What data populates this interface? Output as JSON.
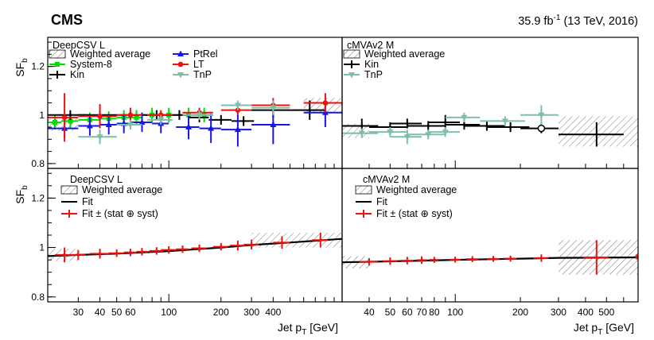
{
  "header": {
    "experiment": "CMS",
    "lumi_prefix": "35.9 fb",
    "lumi_exp": "-1",
    "lumi_suffix": " (13 TeV, 2016)"
  },
  "axes": {
    "ylabel_main": "SF",
    "ylabel_sub": "b",
    "xlabel_main": "Jet p",
    "xlabel_sub": "T",
    "xlabel_unit": " [GeV]"
  },
  "colors": {
    "black": "#000000",
    "green_sys8": "#00dd00",
    "red_lt": "#ee1111",
    "blue_ptrel": "#1515ee",
    "teal_tnp": "#7fbfa6",
    "hatch": "#888888"
  },
  "chart_data": [
    {
      "id": "top-left",
      "type": "scatter",
      "title": "DeepCSV L",
      "ylim": [
        0.78,
        1.32
      ],
      "xlim": [
        20,
        1000
      ],
      "xscale": "log",
      "yticks": [
        0.8,
        1.0,
        1.2
      ],
      "ytick_labels": [
        "0.8",
        "1",
        "1.2"
      ],
      "legend": [
        "Weighted average",
        "System-8",
        "Kin",
        "PtRel",
        "LT",
        "TnP"
      ],
      "hatch_bands": [
        {
          "x0": 20,
          "x1": 30,
          "ylo": 0.935,
          "yhi": 0.985
        },
        {
          "x0": 600,
          "x1": 1000,
          "ylo": 1.01,
          "yhi": 1.07
        }
      ],
      "series": [
        {
          "name": "System-8",
          "marker": "square",
          "color": "green_sys8",
          "points": [
            [
              22,
              0.97,
              2,
              0.03
            ],
            [
              27,
              0.975,
              3,
              0.03
            ],
            [
              35,
              0.98,
              5,
              0.03
            ],
            [
              45,
              0.985,
              5,
              0.03
            ],
            [
              55,
              0.99,
              5,
              0.03
            ],
            [
              65,
              0.99,
              5,
              0.03
            ],
            [
              80,
              1.0,
              10,
              0.03
            ],
            [
              100,
              1.0,
              10,
              0.03
            ],
            [
              130,
              1.0,
              20,
              0.03
            ],
            [
              160,
              1.0,
              20,
              0.03
            ]
          ]
        },
        {
          "name": "Kin",
          "marker": "cross",
          "color": "black",
          "points": [
            [
              27,
              1.0,
              7,
              0.02
            ],
            [
              40,
              1.0,
              10,
              0.02
            ],
            [
              60,
              1.0,
              10,
              0.02
            ],
            [
              85,
              1.0,
              15,
              0.02
            ],
            [
              115,
              1.0,
              15,
              0.02
            ],
            [
              150,
              0.99,
              20,
              0.02
            ],
            [
              200,
              0.98,
              30,
              0.02
            ],
            [
              270,
              0.975,
              40,
              0.02
            ],
            [
              400,
              1.02,
              100,
              0.03
            ],
            [
              650,
              1.02,
              150,
              0.04
            ]
          ]
        },
        {
          "name": "PtRel",
          "marker": "triangle-up",
          "color": "blue_ptrel",
          "points": [
            [
              25,
              0.945,
              5,
              0.04
            ],
            [
              35,
              0.955,
              5,
              0.04
            ],
            [
              45,
              0.96,
              5,
              0.04
            ],
            [
              55,
              0.965,
              5,
              0.04
            ],
            [
              70,
              0.97,
              10,
              0.04
            ],
            [
              90,
              0.965,
              10,
              0.04
            ],
            [
              130,
              0.95,
              20,
              0.05
            ],
            [
              175,
              0.945,
              25,
              0.06
            ],
            [
              250,
              0.94,
              50,
              0.07
            ],
            [
              400,
              0.96,
              100,
              0.08
            ],
            [
              800,
              1.01,
              200,
              0.06
            ]
          ]
        },
        {
          "name": "LT",
          "marker": "circle",
          "color": "red_lt",
          "points": [
            [
              25,
              0.99,
              5,
              0.1
            ],
            [
              40,
              0.995,
              10,
              0.05
            ],
            [
              60,
              1.0,
              10,
              0.03
            ],
            [
              90,
              1.0,
              15,
              0.02
            ],
            [
              150,
              1.01,
              30,
              0.02
            ],
            [
              250,
              1.02,
              50,
              0.02
            ],
            [
              400,
              1.04,
              100,
              0.03
            ],
            [
              800,
              1.05,
              200,
              0.04
            ]
          ]
        },
        {
          "name": "TnP",
          "marker": "triangle-down",
          "color": "teal_tnp",
          "points": [
            [
              40,
              0.91,
              10,
              0.03
            ],
            [
              60,
              0.96,
              10,
              0.02
            ],
            [
              90,
              0.98,
              15,
              0.02
            ],
            [
              150,
              1.0,
              30,
              0.02
            ],
            [
              250,
              1.04,
              50,
              0.02
            ],
            [
              400,
              1.03,
              100,
              0.03
            ]
          ]
        }
      ]
    },
    {
      "id": "top-right",
      "type": "scatter",
      "title": "cMVAv2 M",
      "ylim": [
        0.78,
        1.32
      ],
      "xlim": [
        30,
        700
      ],
      "xscale": "log",
      "legend": [
        "Weighted average",
        "Kin",
        "TnP"
      ],
      "hatch_bands": [
        {
          "x0": 30,
          "x1": 40,
          "ylo": 0.905,
          "yhi": 0.965
        },
        {
          "x0": 300,
          "x1": 700,
          "ylo": 0.87,
          "yhi": 0.995
        }
      ],
      "series": [
        {
          "name": "Kin",
          "marker": "cross",
          "color": "black",
          "points": [
            [
              37,
              0.955,
              7,
              0.03
            ],
            [
              50,
              0.95,
              10,
              0.02
            ],
            [
              60,
              0.965,
              10,
              0.02
            ],
            [
              75,
              0.955,
              15,
              0.02
            ],
            [
              90,
              0.97,
              15,
              0.03
            ],
            [
              110,
              0.96,
              20,
              0.02
            ],
            [
              140,
              0.955,
              30,
              0.02
            ],
            [
              180,
              0.95,
              40,
              0.02
            ],
            [
              250,
              0.945,
              50,
              0.02
            ],
            [
              450,
              0.92,
              150,
              0.05
            ]
          ]
        },
        {
          "name": "TnP",
          "marker": "triangle-down",
          "color": "teal_tnp",
          "points": [
            [
              37,
              0.925,
              7,
              0.02
            ],
            [
              50,
              0.93,
              10,
              0.02
            ],
            [
              60,
              0.91,
              10,
              0.03
            ],
            [
              75,
              0.92,
              15,
              0.02
            ],
            [
              90,
              0.93,
              15,
              0.02
            ],
            [
              110,
              0.99,
              20,
              0.02
            ],
            [
              170,
              0.975,
              40,
              0.02
            ],
            [
              250,
              1.0,
              50,
              0.04
            ]
          ]
        },
        {
          "name": "Weighted average",
          "marker": "open-circle",
          "color": "black",
          "points": [
            [
              250,
              0.945,
              0,
              0.0
            ]
          ]
        }
      ]
    },
    {
      "id": "bottom-left",
      "type": "line",
      "title": "DeepCSV L",
      "ylim": [
        0.78,
        1.32
      ],
      "xlim": [
        20,
        1000
      ],
      "xscale": "log",
      "yticks": [
        0.8,
        1.0,
        1.2
      ],
      "ytick_labels": [
        "0.8",
        "1",
        "1.2"
      ],
      "xticks": [
        30,
        40,
        50,
        60,
        100,
        200,
        300,
        400
      ],
      "xtick_labels": [
        "30",
        "40",
        "50",
        "60",
        "100",
        "200",
        "300",
        "400"
      ],
      "legend": [
        "Weighted average",
        "Fit",
        "Fit ± (stat ⊕ syst)"
      ],
      "hatch_bands": [
        {
          "x0": 20,
          "x1": 30,
          "ylo": 0.945,
          "yhi": 0.995
        },
        {
          "x0": 300,
          "x1": 1000,
          "ylo": 1.0,
          "yhi": 1.06
        }
      ],
      "fit": {
        "x": [
          20,
          30,
          50,
          100,
          200,
          300,
          500,
          1000
        ],
        "y": [
          0.965,
          0.97,
          0.975,
          0.985,
          1.0,
          1.01,
          1.02,
          1.035
        ]
      },
      "series": [
        {
          "name": "Fit ± (stat ⊕ syst)",
          "marker": "cross",
          "color": "red_lt",
          "points": [
            [
              25,
              0.97,
              3,
              0.03
            ],
            [
              30,
              0.97,
              3,
              0.02
            ],
            [
              40,
              0.975,
              5,
              0.02
            ],
            [
              50,
              0.977,
              5,
              0.015
            ],
            [
              60,
              0.98,
              5,
              0.015
            ],
            [
              70,
              0.983,
              5,
              0.015
            ],
            [
              85,
              0.986,
              8,
              0.015
            ],
            [
              100,
              0.99,
              10,
              0.015
            ],
            [
              120,
              0.993,
              10,
              0.015
            ],
            [
              150,
              0.997,
              15,
              0.015
            ],
            [
              200,
              1.003,
              20,
              0.015
            ],
            [
              250,
              1.008,
              25,
              0.02
            ],
            [
              300,
              1.012,
              30,
              0.02
            ],
            [
              450,
              1.02,
              50,
              0.025
            ],
            [
              750,
              1.03,
              80,
              0.03
            ]
          ]
        }
      ]
    },
    {
      "id": "bottom-right",
      "type": "line",
      "title": "cMVAv2 M",
      "ylim": [
        0.78,
        1.32
      ],
      "xlim": [
        30,
        700
      ],
      "xscale": "log",
      "xticks": [
        40,
        50,
        60,
        70,
        80,
        100,
        200,
        300,
        400,
        500
      ],
      "xtick_labels": [
        "40",
        "50",
        "60",
        "70",
        "80",
        "100",
        "200",
        "300",
        "400",
        "500"
      ],
      "legend": [
        "Weighted average",
        "Fit",
        "Fit ± (stat ⊕ syst)"
      ],
      "hatch_bands": [
        {
          "x0": 30,
          "x1": 40,
          "ylo": 0.915,
          "yhi": 0.965
        },
        {
          "x0": 300,
          "x1": 700,
          "ylo": 0.89,
          "yhi": 1.03
        }
      ],
      "fit": {
        "x": [
          30,
          50,
          100,
          200,
          300,
          700
        ],
        "y": [
          0.94,
          0.944,
          0.95,
          0.955,
          0.958,
          0.96
        ]
      },
      "series": [
        {
          "name": "Fit ± (stat ⊕ syst)",
          "marker": "cross",
          "color": "red_lt",
          "points": [
            [
              40,
              0.942,
              4,
              0.015
            ],
            [
              50,
              0.945,
              4,
              0.015
            ],
            [
              60,
              0.947,
              4,
              0.015
            ],
            [
              70,
              0.949,
              4,
              0.015
            ],
            [
              80,
              0.95,
              4,
              0.012
            ],
            [
              100,
              0.951,
              6,
              0.012
            ],
            [
              120,
              0.953,
              8,
              0.012
            ],
            [
              150,
              0.954,
              10,
              0.012
            ],
            [
              180,
              0.955,
              12,
              0.012
            ],
            [
              250,
              0.957,
              20,
              0.015
            ],
            [
              450,
              0.96,
              60,
              0.07
            ],
            [
              690,
              0.962,
              10,
              0.01
            ]
          ]
        }
      ]
    }
  ]
}
